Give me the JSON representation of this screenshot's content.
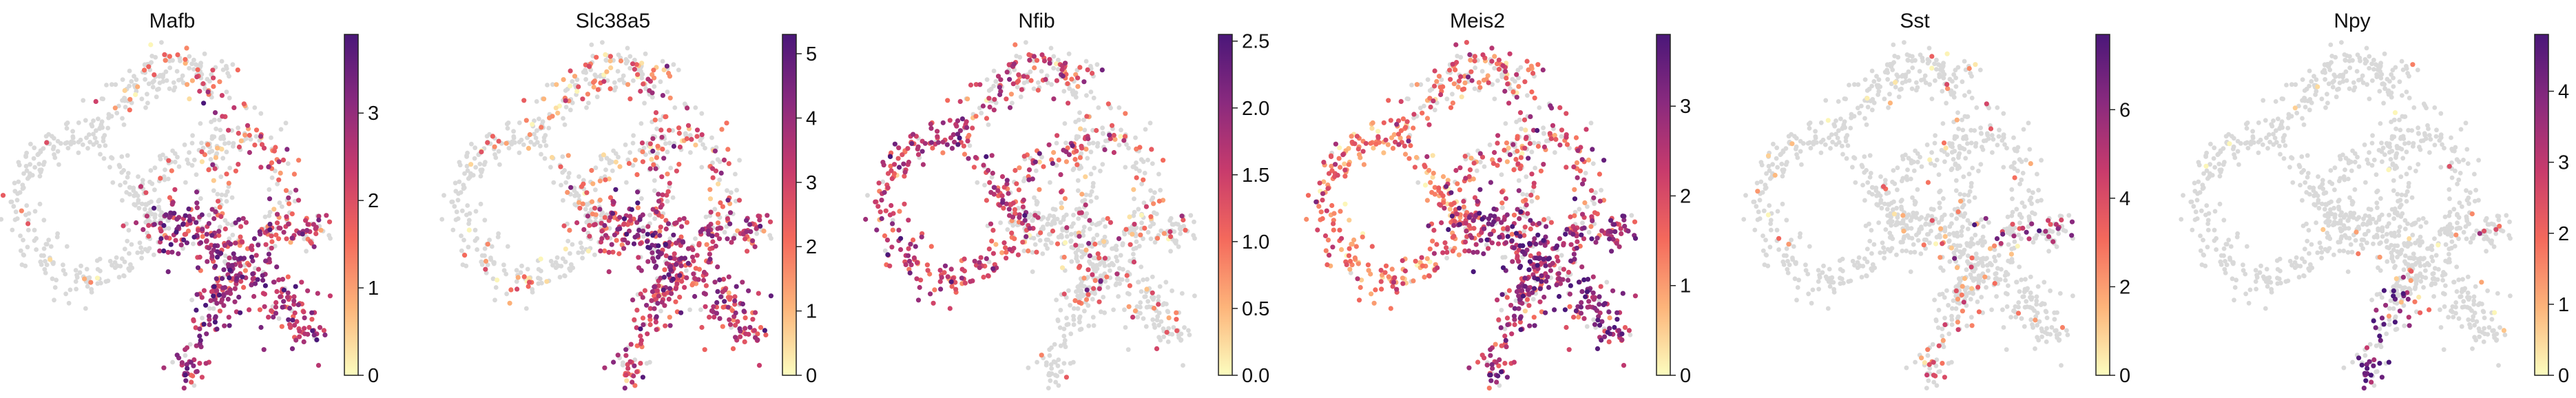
{
  "chart_data": [
    {
      "type": "scatter",
      "title": "Mafb",
      "colormap": "magma_r",
      "colorbar": {
        "ticks": [
          0,
          1,
          2,
          3
        ],
        "tick_labels": [
          "0",
          "1",
          "2",
          "3"
        ],
        "vmin": 0,
        "vmax": 3.9
      },
      "expression_region": "lower-right lobe",
      "xlabel": "",
      "ylabel": ""
    },
    {
      "type": "scatter",
      "title": "Slc38a5",
      "colormap": "magma_r",
      "colorbar": {
        "ticks": [
          0,
          1,
          2,
          3,
          4,
          5
        ],
        "tick_labels": [
          "0",
          "1",
          "2",
          "3",
          "4",
          "5"
        ],
        "vmin": 0,
        "vmax": 5.3
      },
      "expression_region": "lower-right lobe",
      "xlabel": "",
      "ylabel": ""
    },
    {
      "type": "scatter",
      "title": "Nfib",
      "colormap": "magma_r",
      "colorbar": {
        "ticks": [
          0.0,
          0.5,
          1.0,
          1.5,
          2.0,
          2.5
        ],
        "tick_labels": [
          "0.0",
          "0.5",
          "1.0",
          "1.5",
          "2.0",
          "2.5"
        ],
        "vmin": 0,
        "vmax": 2.55
      },
      "expression_region": "left loop",
      "xlabel": "",
      "ylabel": ""
    },
    {
      "type": "scatter",
      "title": "Meis2",
      "colormap": "magma_r",
      "colorbar": {
        "ticks": [
          0,
          1,
          2,
          3
        ],
        "tick_labels": [
          "0",
          "1",
          "2",
          "3"
        ],
        "vmin": 0,
        "vmax": 3.8
      },
      "expression_region": "broad",
      "xlabel": "",
      "ylabel": ""
    },
    {
      "type": "scatter",
      "title": "Sst",
      "colormap": "magma_r",
      "colorbar": {
        "ticks": [
          0,
          2,
          4,
          6
        ],
        "tick_labels": [
          "0",
          "2",
          "4",
          "6"
        ],
        "vmin": 0,
        "vmax": 7.7
      },
      "expression_region": "right arm tip",
      "xlabel": "",
      "ylabel": ""
    },
    {
      "type": "scatter",
      "title": "Npy",
      "colormap": "magma_r",
      "colorbar": {
        "ticks": [
          0,
          1,
          2,
          3,
          4
        ],
        "tick_labels": [
          "0",
          "1",
          "2",
          "3",
          "4"
        ],
        "vmin": 0,
        "vmax": 4.8
      },
      "expression_region": "bottom tip",
      "xlabel": "",
      "ylabel": ""
    }
  ]
}
